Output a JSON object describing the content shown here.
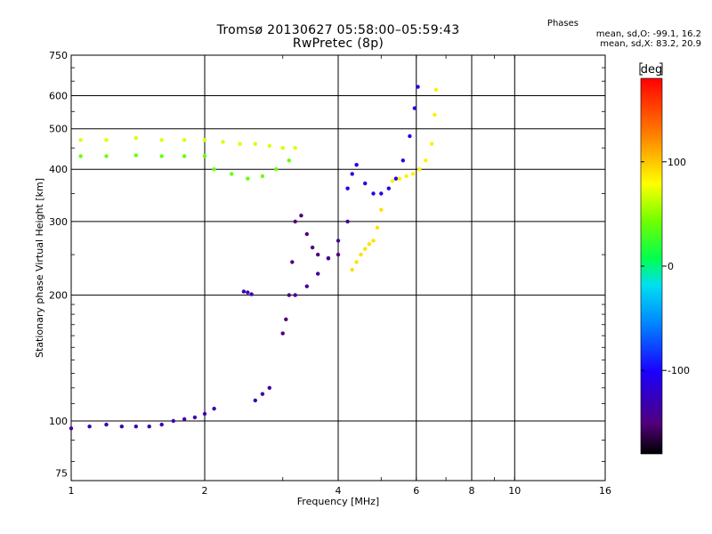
{
  "title": {
    "line1": "Tromsø 20130627 05:58:00–05:59:43",
    "line2": "RwPretec (8p)"
  },
  "stats": {
    "heading": "Phases",
    "o_line": "mean, sd,O: -99.1, 16.2",
    "x_line": "mean, sd,X:  83.2, 20.9"
  },
  "colorbar": {
    "unit": "deg",
    "tick_labels": [
      "100",
      "0",
      "-100"
    ],
    "tick_values": [
      100,
      0,
      -100
    ],
    "range": [
      -180,
      180
    ]
  },
  "chart_data": {
    "type": "scatter",
    "title": "Tromsø 20130627 05:58:00–05:59:43",
    "subtitle": "RwPretec (8p)",
    "xlabel": "Frequency [MHz]",
    "ylabel": "Stationary phase Virtual Height [km]",
    "xscale": "log",
    "yscale": "log",
    "xlim": [
      1,
      16
    ],
    "ylim": [
      72,
      750
    ],
    "x_ticks": [
      1,
      2,
      4,
      6,
      8,
      10,
      16
    ],
    "x_tick_labels": [
      "1",
      "2",
      "4",
      "6",
      "8",
      "10",
      "16"
    ],
    "y_ticks": [
      75,
      100,
      200,
      300,
      400,
      500,
      600,
      750
    ],
    "y_tick_labels": [
      "75",
      "100",
      "200",
      "300",
      "400",
      "500",
      "600",
      "750"
    ],
    "grid": true,
    "colorbar_label": "deg",
    "traces": [
      {
        "mode": "O",
        "phase_deg": -130,
        "x": [
          1.0,
          1.1,
          1.2,
          1.3,
          1.4,
          1.5,
          1.6,
          1.7,
          1.8,
          1.9,
          2.0,
          2.1
        ],
        "y": [
          96,
          97,
          98,
          97,
          97,
          97,
          98,
          100,
          101,
          102,
          104,
          107
        ]
      },
      {
        "mode": "O",
        "phase_deg": -135,
        "x": [
          2.6,
          2.7,
          2.8
        ],
        "y": [
          112,
          116,
          120
        ]
      },
      {
        "mode": "O",
        "phase_deg": -130,
        "x": [
          2.45,
          2.5,
          2.55
        ],
        "y": [
          204,
          203,
          201
        ]
      },
      {
        "mode": "O",
        "phase_deg": -150,
        "x": [
          3.0,
          3.05,
          3.1,
          3.15,
          3.2,
          3.3,
          3.4,
          3.5,
          3.6,
          3.8,
          4.0
        ],
        "y": [
          162,
          175,
          200,
          240,
          300,
          310,
          280,
          260,
          250,
          245,
          250
        ]
      },
      {
        "mode": "O",
        "phase_deg": -140,
        "x": [
          3.2,
          3.4,
          3.6,
          3.8,
          4.0,
          4.2
        ],
        "y": [
          200,
          210,
          225,
          245,
          270,
          300
        ]
      },
      {
        "mode": "O",
        "phase_deg": -110,
        "x": [
          4.2,
          4.3,
          4.4,
          4.6,
          4.8,
          5.0,
          5.2,
          5.4,
          5.6,
          5.8,
          5.95,
          6.05
        ],
        "y": [
          360,
          390,
          410,
          370,
          350,
          350,
          360,
          380,
          420,
          480,
          560,
          630
        ]
      },
      {
        "mode": "X",
        "phase_deg": 90,
        "x": [
          4.3,
          4.4,
          4.5,
          4.6,
          4.7,
          4.8,
          4.9,
          5.0
        ],
        "y": [
          230,
          240,
          250,
          258,
          265,
          270,
          290,
          320
        ]
      },
      {
        "mode": "X",
        "phase_deg": 85,
        "x": [
          5.3,
          5.5,
          5.7,
          5.9,
          6.1,
          6.3,
          6.5,
          6.6,
          6.65
        ],
        "y": [
          375,
          380,
          385,
          390,
          400,
          420,
          460,
          540,
          620
        ]
      },
      {
        "mode": "O+X",
        "phase_deg": 70,
        "x": [
          1.05,
          1.2,
          1.4,
          1.6,
          1.8,
          2.0,
          2.2,
          2.4,
          2.6,
          2.8,
          3.0,
          3.2
        ],
        "y": [
          470,
          470,
          475,
          470,
          470,
          470,
          465,
          460,
          460,
          455,
          450,
          450
        ]
      },
      {
        "mode": "O+X",
        "phase_deg": 40,
        "x": [
          1.05,
          1.2,
          1.4,
          1.6,
          1.8,
          2.0,
          2.1,
          2.3,
          2.5,
          2.7,
          2.9,
          3.1
        ],
        "y": [
          430,
          430,
          432,
          430,
          430,
          430,
          400,
          390,
          380,
          385,
          400,
          420
        ]
      }
    ]
  }
}
